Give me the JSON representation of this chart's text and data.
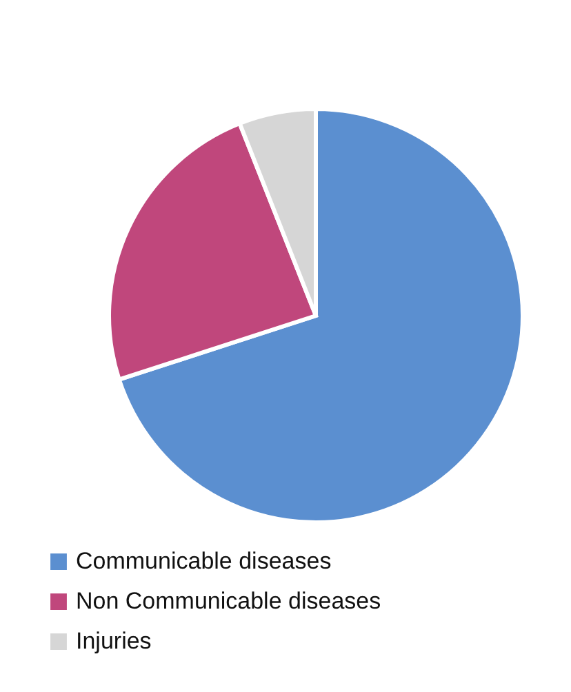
{
  "chart_data": {
    "type": "pie",
    "categories": [
      "Communicable diseases",
      "Non Communicable diseases",
      "Injuries"
    ],
    "values": [
      70,
      24,
      6
    ],
    "colors": [
      "#5b8fd0",
      "#c0477c",
      "#d6d6d6"
    ],
    "legend": "bottom left"
  }
}
